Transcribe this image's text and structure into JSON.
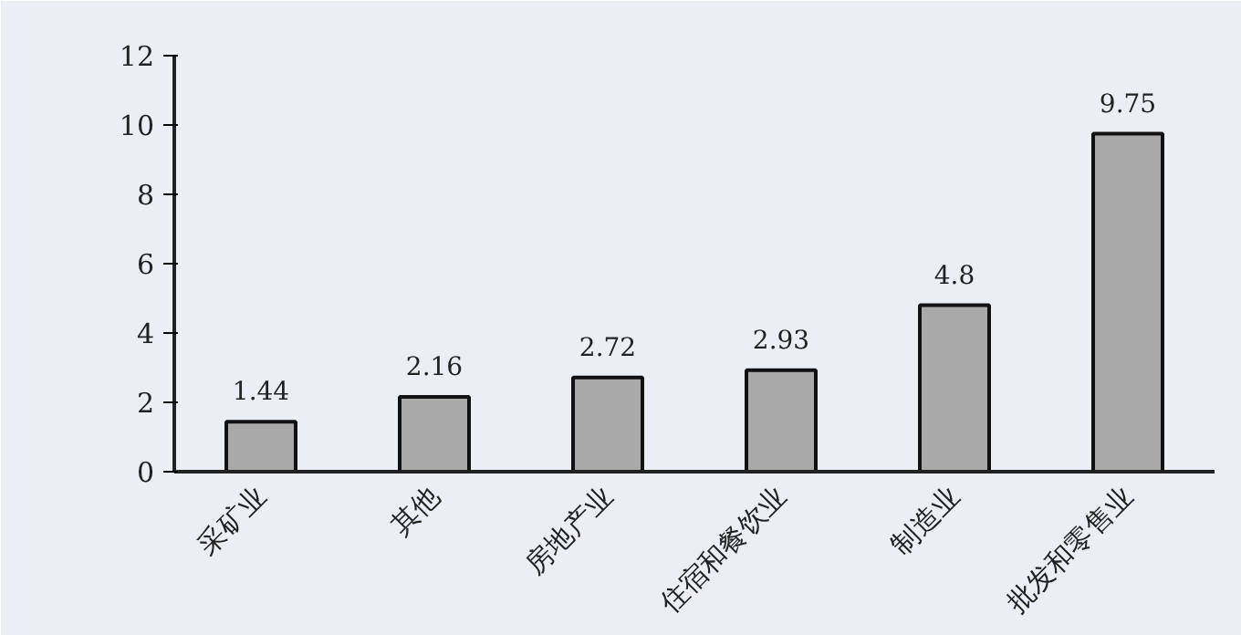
{
  "chart_data": {
    "type": "bar",
    "categories": [
      "采矿业",
      "其他",
      "房地产业",
      "住宿和餐饮业",
      "制造业",
      "批发和零售业"
    ],
    "values": [
      1.44,
      2.16,
      2.72,
      2.93,
      4.8,
      9.75
    ],
    "value_labels": [
      "1.44",
      "2.16",
      "2.72",
      "2.93",
      "4.8",
      "9.75"
    ],
    "color": "#a9a9a9",
    "ylim": [
      0,
      12
    ],
    "yticks": [
      0,
      2,
      4,
      6,
      8,
      10,
      12
    ],
    "grid": false
  }
}
